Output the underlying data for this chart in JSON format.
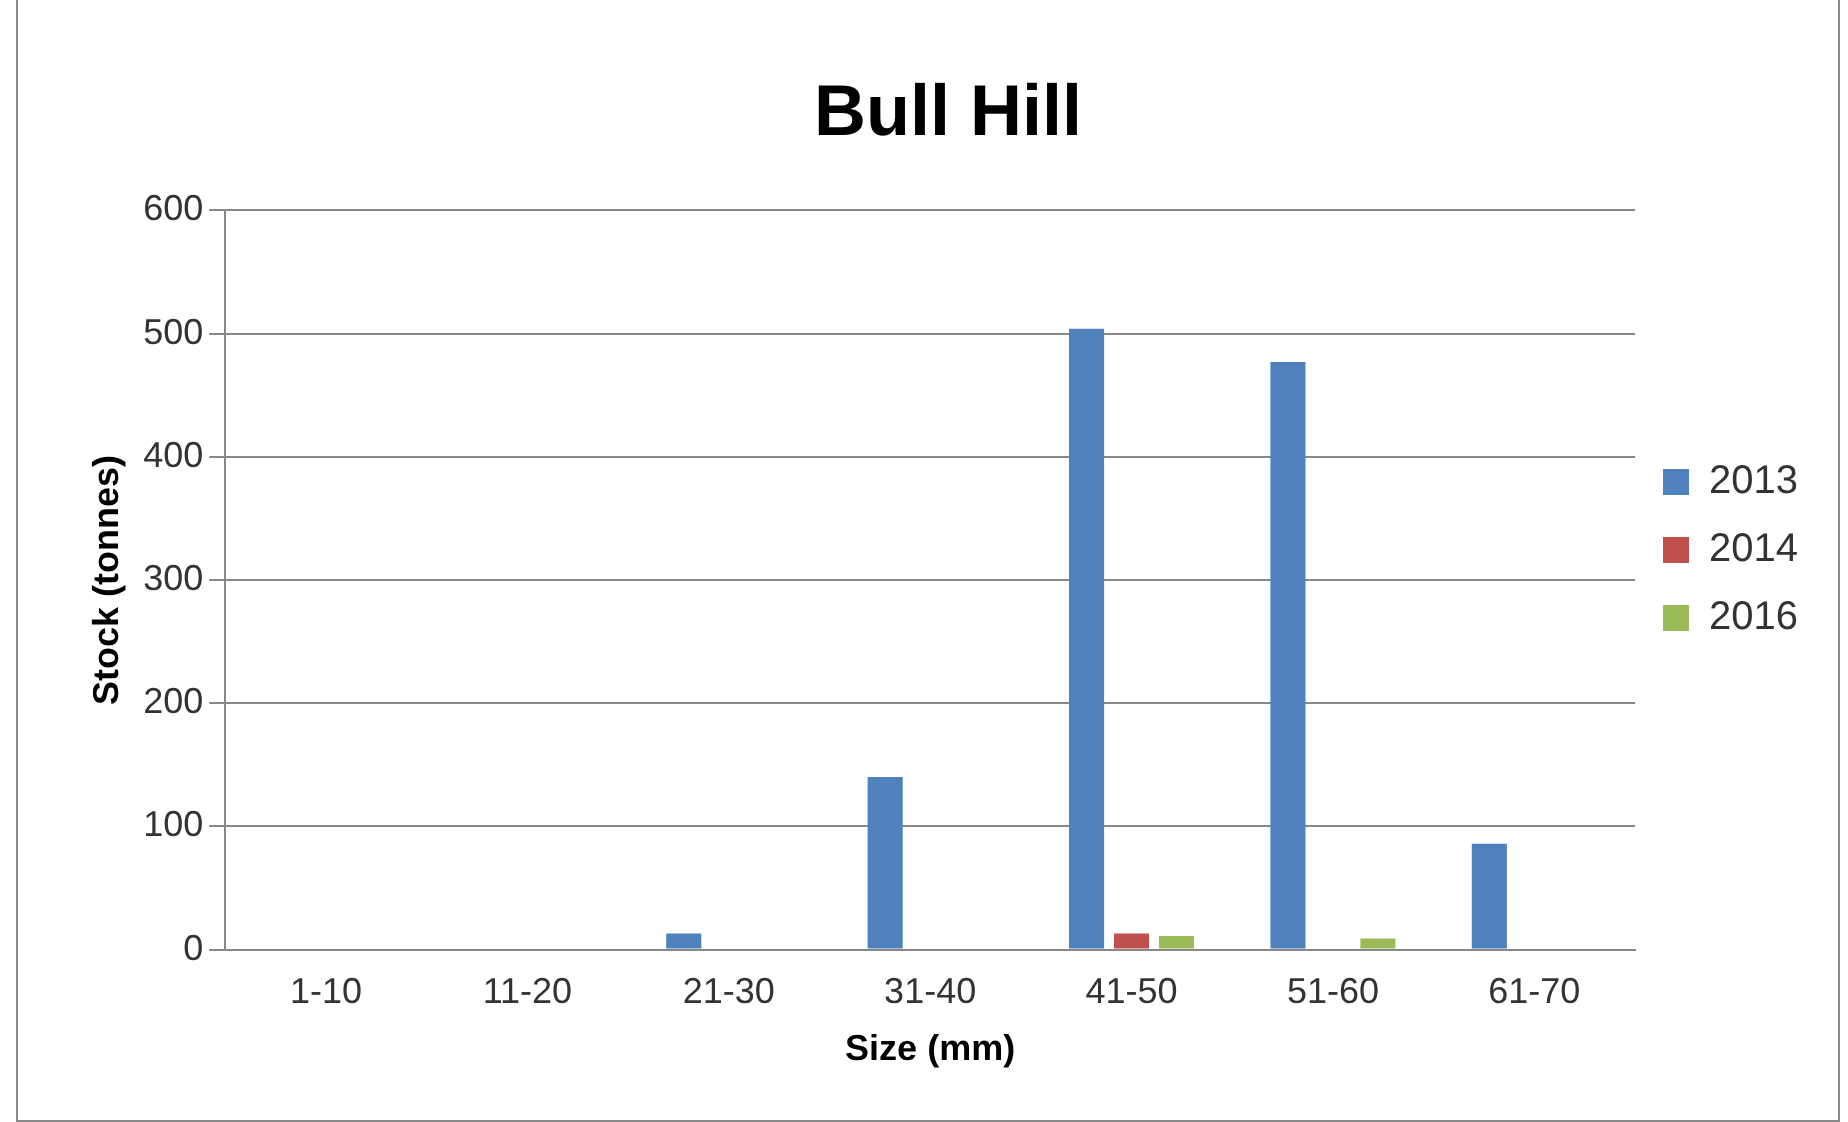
{
  "chart_data": {
    "type": "bar",
    "title": "Bull Hill",
    "xlabel": "Size (mm)",
    "ylabel": "Stock (tonnes)",
    "categories": [
      "1-10",
      "11-20",
      "21-30",
      "31-40",
      "41-50",
      "51-60",
      "61-70"
    ],
    "series": [
      {
        "name": "2013",
        "color": "#4f81bd",
        "values": [
          0,
          0,
          13,
          140,
          504,
          477,
          86
        ]
      },
      {
        "name": "2014",
        "color": "#c0504d",
        "values": [
          0,
          0,
          0,
          0,
          13,
          0,
          0
        ]
      },
      {
        "name": "2016",
        "color": "#9bbb59",
        "values": [
          0,
          0,
          0,
          0,
          11,
          9,
          0
        ]
      }
    ],
    "ylim": [
      0,
      600
    ],
    "yticks": [
      0,
      100,
      200,
      300,
      400,
      500,
      600
    ],
    "grid": "y",
    "legend": "right"
  }
}
